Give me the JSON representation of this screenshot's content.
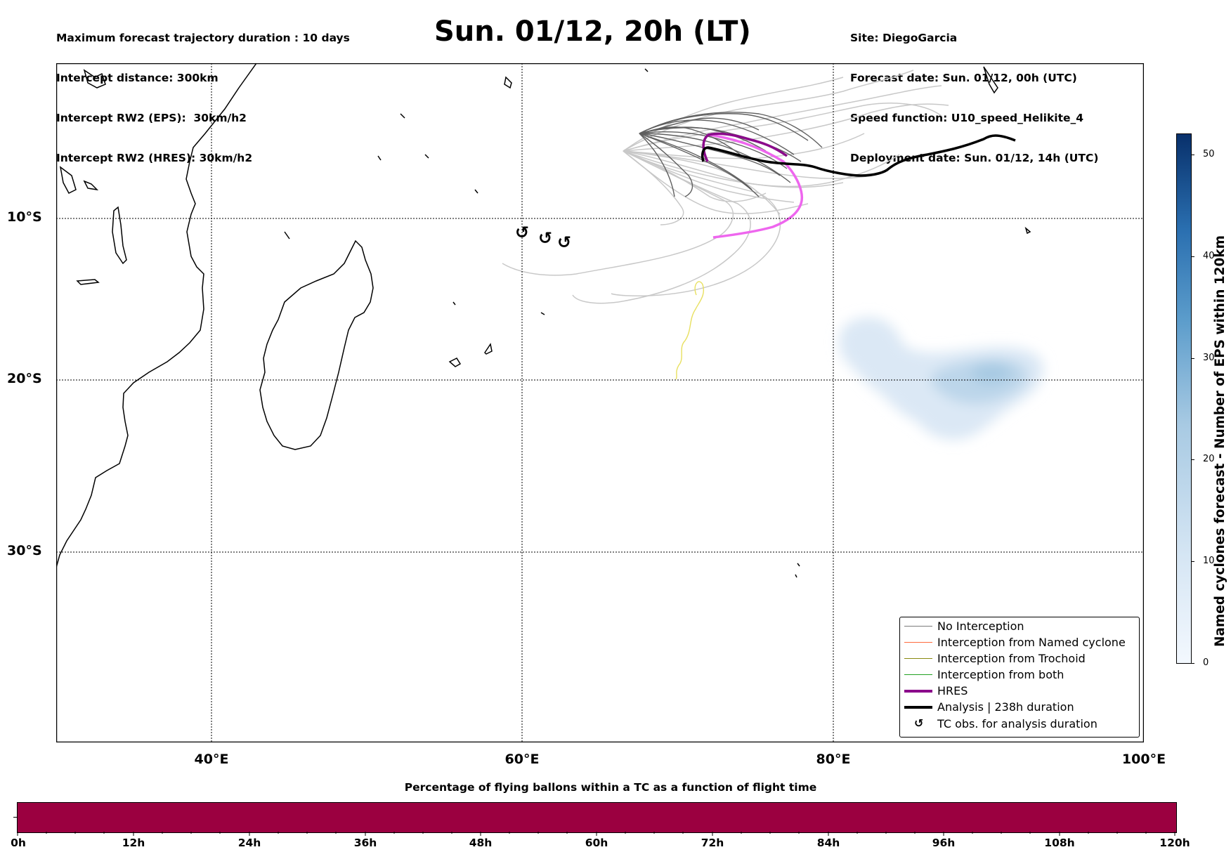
{
  "header_left": [
    "Maximum forecast trajectory duration : 10 days",
    "Intercept distance: 300km",
    "Intercept RW2 (EPS):  30km/h2",
    "Intercept RW2 (HRES): 30km/h2"
  ],
  "title": "Sun. 01/12, 20h (LT)",
  "header_right": [
    "Site: DiegoGarcia",
    "Forecast date: Sun. 01/12, 00h (UTC)",
    "Speed function: U10_speed_Helikite_4",
    "Deployment date: Sun. 01/12, 14h (UTC)"
  ],
  "map": {
    "lat_labels": [
      "10°S",
      "20°S",
      "30°S"
    ],
    "lon_labels": [
      "40°E",
      "60°E",
      "80°E",
      "100°E"
    ],
    "lat_gridlines": [
      -10,
      -20,
      -30
    ],
    "lon_gridlines": [
      40,
      60,
      80
    ],
    "tc_obs_markers": [
      [
        60.0,
        -10.8
      ],
      [
        61.5,
        -11.2
      ],
      [
        62.8,
        -11.4
      ]
    ],
    "colors": {
      "hres": "#8b0a8b",
      "hres_light": "#ee66ee",
      "analysis": "#000000",
      "eps_dark": "#5f5f5f",
      "eps_light": "#c8c8c8",
      "yellow_track": "#e8e060"
    }
  },
  "legend": {
    "items": [
      {
        "label": "No Interception",
        "color": "#7a7a7a",
        "width": 1.2
      },
      {
        "label": "Interception from Named cyclone",
        "color": "#ff6a3d",
        "width": 1.2
      },
      {
        "label": "Interception from Trochoid",
        "color": "#8a8a10",
        "width": 1.2
      },
      {
        "label": "Interception from both",
        "color": "#22a022",
        "width": 1.2
      },
      {
        "label": "HRES",
        "color": "#8b0a8b",
        "width": 4
      },
      {
        "label": "Analysis | 238h duration",
        "color": "#000000",
        "width": 4
      }
    ],
    "tc_label": "TC obs. for analysis duration",
    "tc_symbol": "↺"
  },
  "colorbar": {
    "title": "Named cyclones forecast - Number of EPS within 120km",
    "ticks": [
      "0",
      "10",
      "20",
      "30",
      "40",
      "50"
    ],
    "max": 52
  },
  "flight_bar": {
    "title": "Percentage of flying ballons within a TC as a function of flight time",
    "ticks": [
      "0h",
      "12h",
      "24h",
      "36h",
      "48h",
      "60h",
      "72h",
      "84h",
      "96h",
      "108h",
      "120h"
    ],
    "color": "#9b0040"
  }
}
